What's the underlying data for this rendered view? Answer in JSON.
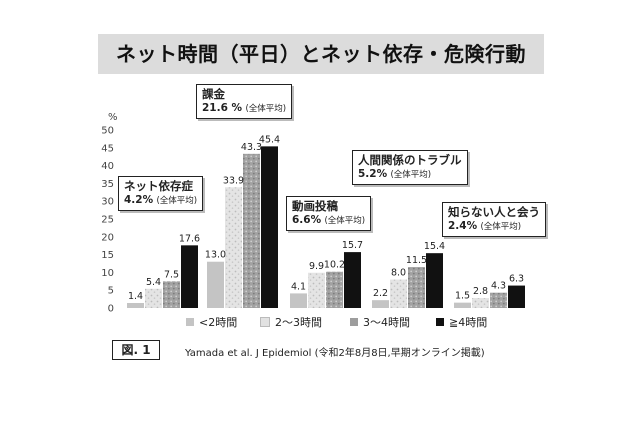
{
  "title": "ネット時間（平日）とネット依存・危険行動",
  "figure_label": "図. 1",
  "citation": "Yamada et al. J Epidemiol (令和2年8月8日,早期オンライン掲載)",
  "colors": {
    "lt2": "#c4c4c4",
    "h2to3": "#e2e2e2",
    "h3to4": "#9d9d9d",
    "ge4": "#111111"
  },
  "callouts": [
    {
      "name": "ネット依存症",
      "value": "4.2%",
      "avg": "(全体平均)"
    },
    {
      "name": "課金",
      "value": "21.6 %",
      "avg": "(全体平均)"
    },
    {
      "name": "動画投稿",
      "value": "6.6%",
      "avg": "(全体平均)"
    },
    {
      "name": "人間関係のトラブル",
      "value": "5.2%",
      "avg": "(全体平均)"
    },
    {
      "name": "知らない人と会う",
      "value": "2.4%",
      "avg": "(全体平均)"
    }
  ],
  "chart_data": {
    "type": "bar",
    "categories": [
      "ネット依存症",
      "課金",
      "動画投稿",
      "人間関係のトラブル",
      "知らない人と会う"
    ],
    "series": [
      {
        "name": "<2時間",
        "values": [
          1.4,
          13.0,
          4.1,
          2.2,
          1.5
        ]
      },
      {
        "name": "2～3時間",
        "values": [
          5.4,
          33.9,
          9.9,
          8.0,
          2.8
        ]
      },
      {
        "name": "3～4時間",
        "values": [
          7.5,
          43.3,
          10.2,
          11.5,
          4.3
        ]
      },
      {
        "name": "≧4時間",
        "values": [
          17.6,
          45.4,
          15.7,
          15.4,
          6.3
        ]
      }
    ],
    "value_labels": [
      [
        "1.4",
        "5.4",
        "7.5",
        "17.6"
      ],
      [
        "13.0",
        "33.9",
        "43.3",
        "45.4"
      ],
      [
        "4.1",
        "9.9",
        "10.2",
        "15.7"
      ],
      [
        "2.2",
        "8.0",
        "11.5",
        "15.4"
      ],
      [
        "1.5",
        "2.8",
        "4.3",
        "6.3"
      ]
    ],
    "ylabel": "%",
    "ylim": [
      0,
      50
    ],
    "yticks": [
      0,
      5,
      10,
      15,
      20,
      25,
      30,
      35,
      40,
      45,
      50
    ],
    "grid": false,
    "legend": "bottom"
  }
}
